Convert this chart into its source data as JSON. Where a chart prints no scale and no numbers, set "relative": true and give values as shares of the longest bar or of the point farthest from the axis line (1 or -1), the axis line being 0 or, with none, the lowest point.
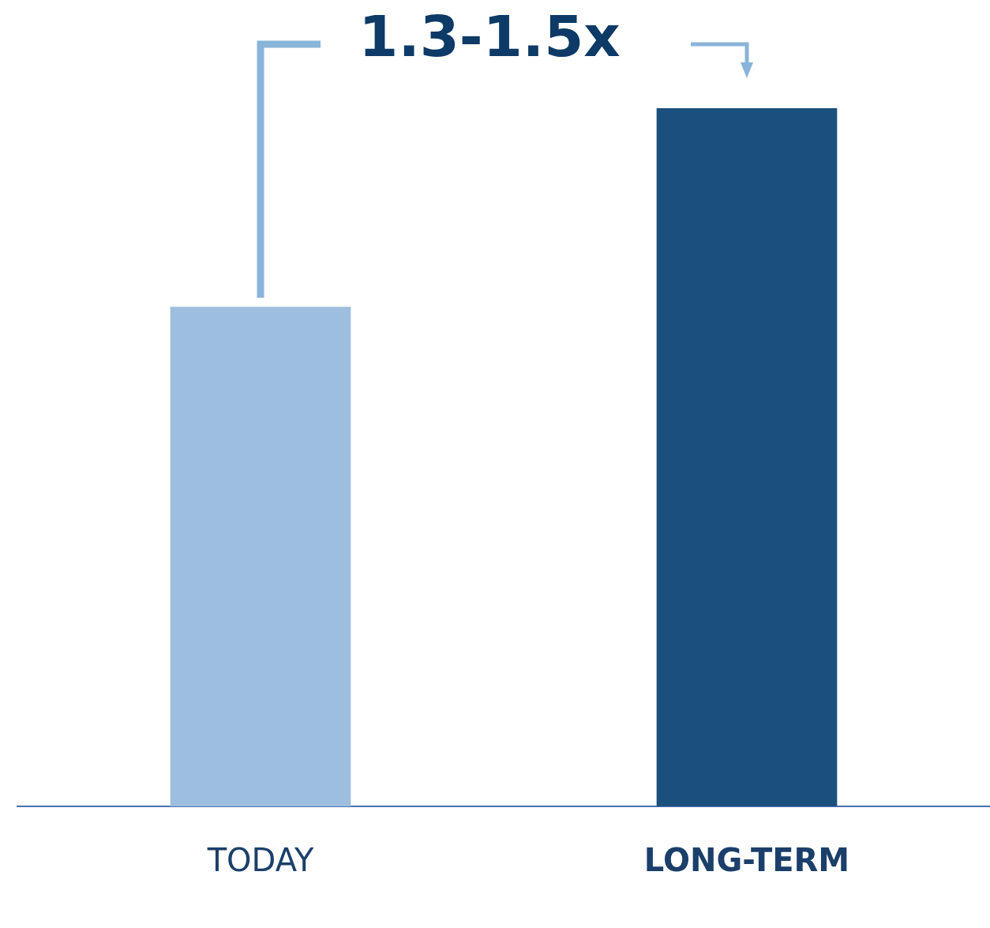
{
  "chart_data": {
    "type": "bar",
    "relative": true,
    "categories": [
      "TODAY",
      "LONG-TERM"
    ],
    "values": [
      0.715,
      1
    ],
    "colors": [
      "#9dbede",
      "#1b507e"
    ],
    "annotations": [
      "1.3-1.5x"
    ],
    "grid": false,
    "legend": false
  }
}
